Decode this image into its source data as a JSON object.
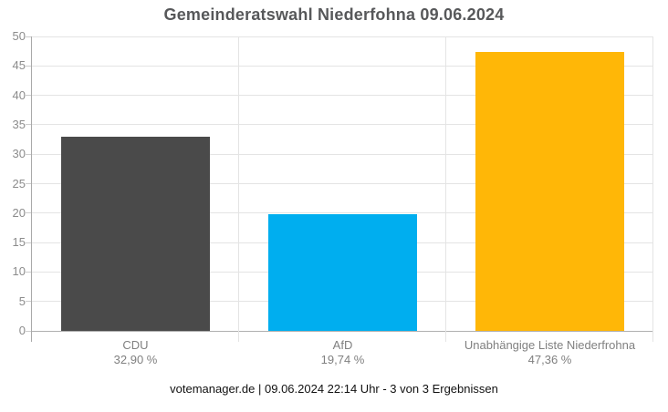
{
  "chart_data": {
    "type": "bar",
    "title": "Gemeinderatswahl Niederfohna 09.06.2024",
    "categories": [
      "CDU",
      "AfD",
      "Unabhängige Liste Niederfrohna"
    ],
    "values": [
      32.9,
      19.74,
      47.36
    ],
    "value_labels": [
      "32,90 %",
      "19,74 %",
      "47,36 %"
    ],
    "bar_colors": [
      "#4a4a4a",
      "#00aeef",
      "#ffb707"
    ],
    "xlabel": "",
    "ylabel": "",
    "ylim": [
      0,
      50
    ],
    "ytick_step": 5,
    "ytick_labels": [
      "0",
      "5",
      "10",
      "15",
      "20",
      "25",
      "30",
      "35",
      "40",
      "45",
      "50"
    ],
    "grid": "horizontal gridlines every 5 units; vertical lines at category boundaries",
    "legend": "none"
  },
  "footer": {
    "text": "votemanager.de | 09.06.2024 22:14 Uhr - 3 von 3 Ergebnissen"
  },
  "colors": {
    "background": "#ffffff",
    "title_text": "#57585a",
    "axis_line": "#a9a9a9",
    "gridline": "#e4e4e4",
    "zero_line": "#b0b0b0",
    "tick_mark": "#cccccc",
    "y_tick_label_text": "#8c8c8c",
    "category_label_text": "#808080",
    "footer_text": "#111111"
  }
}
